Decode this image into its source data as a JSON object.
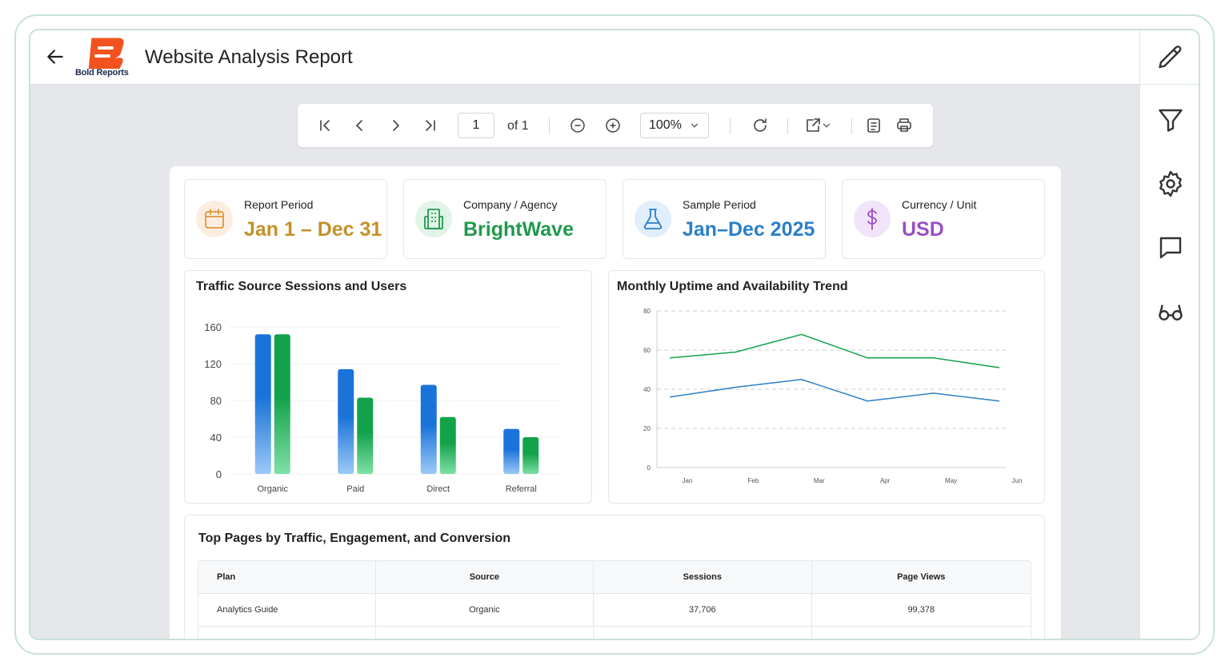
{
  "header": {
    "title": "Website Analysis Report",
    "logo_text": "Bold Reports"
  },
  "toolbar": {
    "page_number": "1",
    "page_of": "of 1",
    "zoom": "100%"
  },
  "kpis": [
    {
      "label": "Report Period",
      "value": "Jan 1 – Dec 31",
      "color": "#c4902a",
      "icon": "calendar-icon"
    },
    {
      "label": "Company / Agency",
      "value": "BrightWave",
      "color": "#1f9a4c",
      "icon": "building-icon"
    },
    {
      "label": "Sample Period",
      "value": "Jan–Dec 2025",
      "color": "#2a7fc9",
      "icon": "flask-icon"
    },
    {
      "label": "Currency / Unit",
      "value": "USD",
      "color": "#9b4fc0",
      "icon": "dollar-icon"
    }
  ],
  "chart_data": [
    {
      "type": "bar",
      "title": "Traffic Source Sessions and Users",
      "categories": [
        "Organic",
        "Paid",
        "Direct",
        "Referral"
      ],
      "series": [
        {
          "values": [
            152,
            114,
            97,
            49
          ],
          "color": "#1a73d9"
        },
        {
          "values": [
            152,
            83,
            62,
            40
          ],
          "color": "#12a24a"
        }
      ],
      "ylim": [
        0,
        160
      ],
      "yticks": [
        0,
        40,
        80,
        120,
        160
      ],
      "grid": true
    },
    {
      "type": "line",
      "title": "Monthly Uptime and Availability Trend",
      "categories": [
        "Jan",
        "Feb",
        "Mar",
        "Apr",
        "May",
        "Jun"
      ],
      "series": [
        {
          "values": [
            56,
            59,
            68,
            56,
            56,
            51
          ],
          "color": "#12a24a"
        },
        {
          "values": [
            36,
            41,
            45,
            34,
            38,
            34
          ],
          "color": "#2a7fc9"
        }
      ],
      "ylim": [
        0,
        80
      ],
      "yticks": [
        0,
        20,
        40,
        60,
        80
      ],
      "grid": true
    }
  ],
  "table": {
    "title": "Top Pages by Traffic, Engagement, and Conversion",
    "headers": [
      "Plan",
      "Source",
      "Sessions",
      "Page Views"
    ],
    "rows": [
      [
        "Analytics Guide",
        "Organic",
        "37,706",
        "99,378"
      ]
    ]
  }
}
